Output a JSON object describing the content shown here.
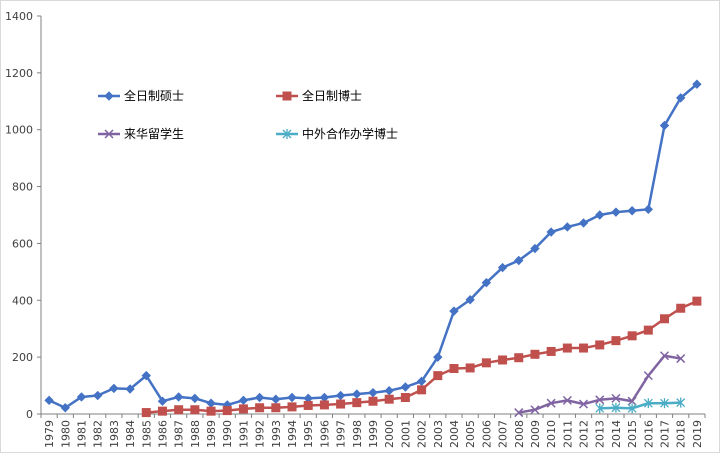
{
  "chart_data": {
    "type": "line",
    "title": "",
    "xlabel": "",
    "ylabel": "",
    "ylim": [
      0,
      1400
    ],
    "y_ticks": [
      0,
      200,
      400,
      600,
      800,
      1000,
      1200,
      1400
    ],
    "grid": false,
    "legend_position": "upper-left, inside plot, 2 columns",
    "categories": [
      "1979",
      "1980",
      "1981",
      "1982",
      "1983",
      "1984",
      "1985",
      "1986",
      "1987",
      "1988",
      "1989",
      "1990",
      "1991",
      "1992",
      "1993",
      "1994",
      "1995",
      "1996",
      "1997",
      "1998",
      "1999",
      "2000",
      "2001",
      "2002",
      "2003",
      "2004",
      "2005",
      "2006",
      "2007",
      "2008",
      "2009",
      "2010",
      "2011",
      "2012",
      "2013",
      "2014",
      "2015",
      "2016",
      "2017",
      "2018",
      "2019"
    ],
    "series": [
      {
        "name": "全日制硕士",
        "color": "#4472c4",
        "marker": "diamond",
        "values": [
          48,
          22,
          60,
          65,
          90,
          88,
          135,
          45,
          60,
          55,
          38,
          32,
          48,
          58,
          52,
          58,
          55,
          58,
          65,
          70,
          75,
          82,
          95,
          115,
          200,
          362,
          402,
          462,
          515,
          540,
          582,
          640,
          658,
          672,
          700,
          710,
          715,
          720,
          1015,
          1112,
          1160
        ]
      },
      {
        "name": "全日制博士",
        "color": "#c0504d",
        "marker": "square",
        "values": [
          null,
          null,
          null,
          null,
          null,
          null,
          5,
          10,
          15,
          15,
          10,
          12,
          18,
          22,
          22,
          25,
          30,
          32,
          35,
          40,
          45,
          52,
          58,
          85,
          135,
          160,
          162,
          180,
          190,
          198,
          210,
          220,
          232,
          232,
          243,
          258,
          275,
          295,
          335,
          372,
          397
        ]
      },
      {
        "name": "来华留学生",
        "color": "#8064a2",
        "marker": "x",
        "values": [
          null,
          null,
          null,
          null,
          null,
          null,
          null,
          null,
          null,
          null,
          null,
          null,
          null,
          null,
          null,
          null,
          null,
          null,
          null,
          null,
          null,
          null,
          null,
          null,
          null,
          null,
          null,
          null,
          null,
          5,
          15,
          38,
          48,
          35,
          50,
          55,
          45,
          135,
          205,
          195,
          null
        ]
      },
      {
        "name": "中外合作办学博士",
        "color": "#4bacc6",
        "marker": "asterisk",
        "values": [
          null,
          null,
          null,
          null,
          null,
          null,
          null,
          null,
          null,
          null,
          null,
          null,
          null,
          null,
          null,
          null,
          null,
          null,
          null,
          null,
          null,
          null,
          null,
          null,
          null,
          null,
          null,
          null,
          null,
          null,
          null,
          null,
          null,
          null,
          20,
          22,
          20,
          38,
          38,
          40,
          null
        ]
      }
    ]
  }
}
